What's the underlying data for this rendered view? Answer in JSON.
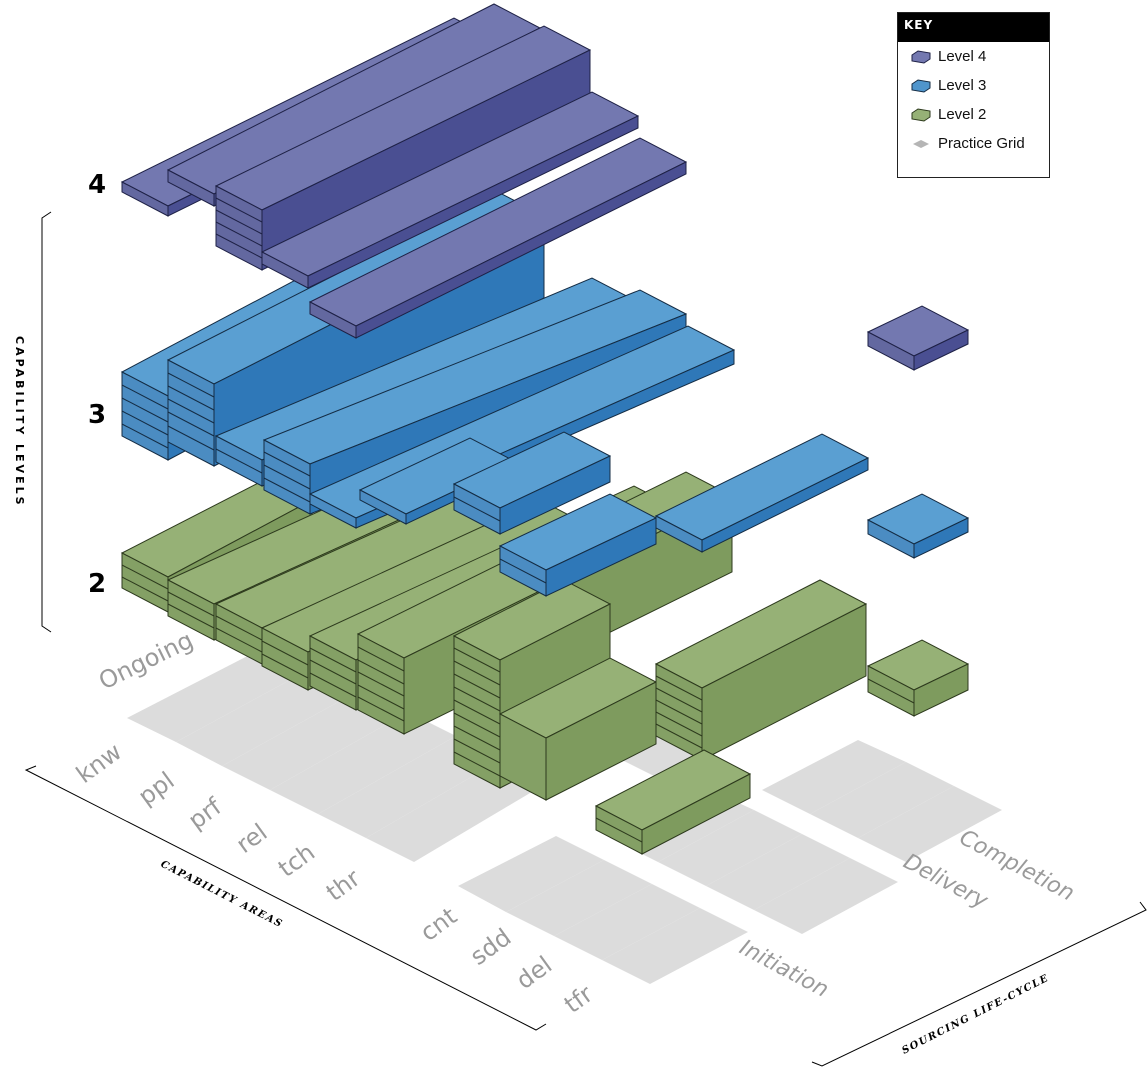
{
  "legend": {
    "title": "KEY",
    "items": [
      {
        "label": "Level 4",
        "color": "#7378b0",
        "shape": "hexagon"
      },
      {
        "label": "Level 3",
        "color": "#4f95cc",
        "shape": "hexagon"
      },
      {
        "label": "Level 2",
        "color": "#96b176",
        "shape": "hexagon"
      },
      {
        "label": "Practice Grid",
        "color": "#b5b5b5",
        "shape": "diamond"
      }
    ]
  },
  "capability_levels": {
    "title": "CAPABILITY LEVELS",
    "levels": [
      "4",
      "3",
      "2"
    ]
  },
  "capability_areas": {
    "title": "CAPABILITY AREAS",
    "ongoing": [
      "knw",
      "ppl",
      "prf",
      "rel",
      "tch",
      "thr"
    ],
    "lifecycle": [
      "cnt",
      "sdd",
      "del",
      "tfr"
    ]
  },
  "sourcing_lifecycle": {
    "title": "SOURCING LIFE-CYCLE",
    "phases": [
      "Ongoing",
      "Initiation",
      "Delivery",
      "Completion"
    ]
  },
  "colors": {
    "level4": "#7378b0",
    "level3": "#4f95cc",
    "level2": "#96b176",
    "grid": "#dcdcdc"
  }
}
